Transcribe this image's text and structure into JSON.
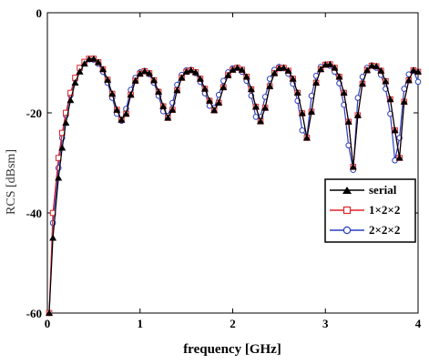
{
  "chart_data": {
    "type": "line",
    "xlabel": "frequency [GHz]",
    "ylabel": "RCS  [dBsm]",
    "xlim": [
      0,
      4
    ],
    "ylim": [
      -60,
      0
    ],
    "xticks": [
      0,
      1,
      2,
      3,
      4
    ],
    "yticks": [
      0,
      -20,
      -40,
      -60
    ],
    "xtick_labels": [
      "0",
      "1",
      "2",
      "3",
      "4"
    ],
    "ytick_labels": [
      "0",
      "-20",
      "-40",
      "-60"
    ],
    "grid": false,
    "legend_position": "lower-right",
    "series": [
      {
        "name": "serial",
        "color": "#000000",
        "marker": "filled-triangle",
        "x": [
          0.02,
          0.06,
          0.12,
          0.16,
          0.2,
          0.25,
          0.3,
          0.35,
          0.4,
          0.45,
          0.5,
          0.55,
          0.6,
          0.65,
          0.7,
          0.75,
          0.8,
          0.85,
          0.9,
          0.95,
          1.0,
          1.05,
          1.1,
          1.15,
          1.2,
          1.25,
          1.3,
          1.35,
          1.4,
          1.45,
          1.5,
          1.55,
          1.6,
          1.65,
          1.7,
          1.75,
          1.8,
          1.85,
          1.9,
          1.95,
          2.0,
          2.05,
          2.1,
          2.15,
          2.2,
          2.25,
          2.3,
          2.35,
          2.4,
          2.45,
          2.5,
          2.55,
          2.6,
          2.65,
          2.7,
          2.75,
          2.8,
          2.85,
          2.9,
          2.95,
          3.0,
          3.05,
          3.1,
          3.15,
          3.2,
          3.25,
          3.3,
          3.35,
          3.4,
          3.45,
          3.5,
          3.55,
          3.6,
          3.65,
          3.7,
          3.75,
          3.8,
          3.85,
          3.9,
          3.95,
          4.0
        ],
        "y": [
          -60.0,
          -45.0,
          -33.0,
          -27.0,
          -22.0,
          -17.5,
          -14.0,
          -11.8,
          -10.2,
          -9.3,
          -9.2,
          -9.9,
          -11.3,
          -13.4,
          -16.2,
          -19.4,
          -21.4,
          -20.2,
          -16.4,
          -13.6,
          -12.2,
          -11.7,
          -12.1,
          -13.5,
          -15.8,
          -18.7,
          -21.0,
          -19.4,
          -15.5,
          -13.0,
          -11.8,
          -11.5,
          -11.9,
          -13.2,
          -15.2,
          -17.6,
          -19.5,
          -18.0,
          -14.9,
          -12.5,
          -11.4,
          -11.0,
          -11.4,
          -12.8,
          -15.3,
          -18.8,
          -21.7,
          -19.0,
          -14.7,
          -12.1,
          -11.1,
          -11.0,
          -11.6,
          -13.2,
          -16.0,
          -20.1,
          -25.0,
          -19.8,
          -14.0,
          -11.3,
          -10.4,
          -10.3,
          -11.0,
          -12.8,
          -16.0,
          -21.8,
          -30.8,
          -20.5,
          -14.2,
          -11.5,
          -10.6,
          -10.7,
          -11.6,
          -13.7,
          -17.3,
          -23.5,
          -29.0,
          -17.8,
          -13.5,
          -11.5,
          -11.8
        ]
      },
      {
        "name": "1×2×2",
        "color": "#e0242a",
        "marker": "open-square",
        "x": [
          0.02,
          0.06,
          0.12,
          0.16,
          0.2,
          0.25,
          0.3,
          0.35,
          0.4,
          0.45,
          0.5,
          0.55,
          0.6,
          0.65,
          0.7,
          0.75,
          0.8,
          0.85,
          0.9,
          0.95,
          1.0,
          1.05,
          1.1,
          1.15,
          1.2,
          1.25,
          1.3,
          1.35,
          1.4,
          1.45,
          1.5,
          1.55,
          1.6,
          1.65,
          1.7,
          1.75,
          1.8,
          1.85,
          1.9,
          1.95,
          2.0,
          2.05,
          2.1,
          2.15,
          2.2,
          2.25,
          2.3,
          2.35,
          2.4,
          2.45,
          2.5,
          2.55,
          2.6,
          2.65,
          2.7,
          2.75,
          2.8,
          2.85,
          2.9,
          2.95,
          3.0,
          3.05,
          3.1,
          3.15,
          3.2,
          3.25,
          3.3,
          3.35,
          3.4,
          3.45,
          3.5,
          3.55,
          3.6,
          3.65,
          3.7,
          3.75,
          3.8,
          3.85,
          3.9,
          3.95,
          4.0
        ],
        "y": [
          -60.0,
          -40.0,
          -29.0,
          -24.0,
          -20.0,
          -16.0,
          -13.0,
          -11.0,
          -9.8,
          -9.2,
          -9.2,
          -9.9,
          -11.3,
          -13.4,
          -16.2,
          -19.4,
          -21.4,
          -20.2,
          -16.4,
          -13.6,
          -12.2,
          -11.7,
          -12.1,
          -13.5,
          -15.8,
          -18.7,
          -21.0,
          -19.4,
          -15.5,
          -13.0,
          -11.8,
          -11.5,
          -11.9,
          -13.2,
          -15.2,
          -17.6,
          -19.5,
          -18.0,
          -14.9,
          -12.5,
          -11.4,
          -11.0,
          -11.4,
          -12.8,
          -15.3,
          -18.8,
          -21.7,
          -19.0,
          -14.7,
          -12.1,
          -11.1,
          -11.0,
          -11.6,
          -13.2,
          -16.0,
          -20.1,
          -25.0,
          -19.8,
          -14.0,
          -11.3,
          -10.4,
          -10.3,
          -11.0,
          -12.8,
          -16.0,
          -21.8,
          -30.8,
          -20.5,
          -14.2,
          -11.5,
          -10.6,
          -10.7,
          -11.6,
          -13.7,
          -17.3,
          -23.5,
          -29.0,
          -17.8,
          -13.5,
          -11.5,
          -11.8
        ]
      },
      {
        "name": "2×2×2",
        "color": "#2a3fbf",
        "marker": "open-circle",
        "x": [
          0.02,
          0.06,
          0.12,
          0.16,
          0.2,
          0.25,
          0.3,
          0.35,
          0.4,
          0.45,
          0.5,
          0.55,
          0.6,
          0.65,
          0.7,
          0.75,
          0.8,
          0.85,
          0.9,
          0.95,
          1.0,
          1.05,
          1.1,
          1.15,
          1.2,
          1.25,
          1.3,
          1.35,
          1.4,
          1.45,
          1.5,
          1.55,
          1.6,
          1.65,
          1.7,
          1.75,
          1.8,
          1.85,
          1.9,
          1.95,
          2.0,
          2.05,
          2.1,
          2.15,
          2.2,
          2.25,
          2.3,
          2.35,
          2.4,
          2.45,
          2.5,
          2.55,
          2.6,
          2.65,
          2.7,
          2.75,
          2.8,
          2.85,
          2.9,
          2.95,
          3.0,
          3.05,
          3.1,
          3.15,
          3.2,
          3.25,
          3.3,
          3.35,
          3.4,
          3.45,
          3.5,
          3.55,
          3.6,
          3.65,
          3.7,
          3.75,
          3.8,
          3.85,
          3.9,
          3.95,
          4.0
        ],
        "y": [
          -60.0,
          -42.0,
          -31.0,
          -25.0,
          -20.5,
          -16.5,
          -13.3,
          -11.2,
          -9.9,
          -9.3,
          -9.4,
          -10.2,
          -11.8,
          -14.0,
          -17.0,
          -20.2,
          -21.6,
          -19.2,
          -15.4,
          -13.0,
          -11.9,
          -11.6,
          -12.3,
          -14.0,
          -16.6,
          -19.7,
          -20.6,
          -18.0,
          -14.4,
          -12.4,
          -11.5,
          -11.4,
          -12.1,
          -13.8,
          -16.1,
          -18.6,
          -19.0,
          -16.4,
          -13.6,
          -11.9,
          -11.1,
          -11.0,
          -11.8,
          -13.6,
          -16.6,
          -20.8,
          -20.8,
          -16.8,
          -13.2,
          -11.4,
          -10.8,
          -11.1,
          -12.2,
          -14.2,
          -17.6,
          -23.5,
          -24.8,
          -16.6,
          -12.6,
          -10.8,
          -10.3,
          -10.6,
          -11.8,
          -14.1,
          -18.4,
          -26.5,
          -31.4,
          -17.0,
          -12.8,
          -11.0,
          -10.5,
          -11.0,
          -12.4,
          -15.2,
          -20.2,
          -29.5,
          -25.0,
          -15.2,
          -12.3,
          -11.6,
          -13.8
        ]
      }
    ]
  }
}
